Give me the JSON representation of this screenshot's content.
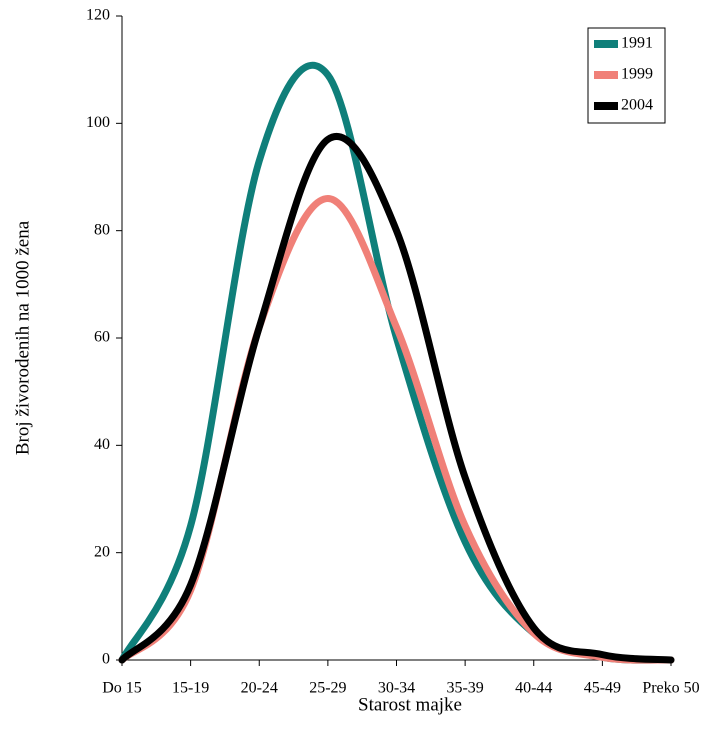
{
  "chart_data": {
    "type": "line",
    "x_label": "Starost majke",
    "y_label": "Broj živorodenih na 1000 žena",
    "categories": [
      "Do 15",
      "15-19",
      "20-24",
      "25-29",
      "30-34",
      "35-39",
      "40-44",
      "45-49",
      "Preko 50"
    ],
    "series": [
      {
        "name": "1991",
        "color": "#0f7f7a",
        "values": [
          0,
          25,
          93,
          109,
          60,
          22,
          5,
          0.5,
          0
        ]
      },
      {
        "name": "1999",
        "color": "#f08078",
        "values": [
          0,
          13,
          62,
          86,
          62,
          25,
          5,
          0.5,
          0
        ]
      },
      {
        "name": "2004",
        "color": "#000000",
        "values": [
          0,
          14,
          62,
          97,
          80,
          34,
          6,
          1,
          0
        ]
      }
    ],
    "ylim": [
      0,
      120
    ],
    "yticks": [
      0,
      20,
      40,
      60,
      80,
      100,
      120
    ],
    "legend": "upper right"
  }
}
